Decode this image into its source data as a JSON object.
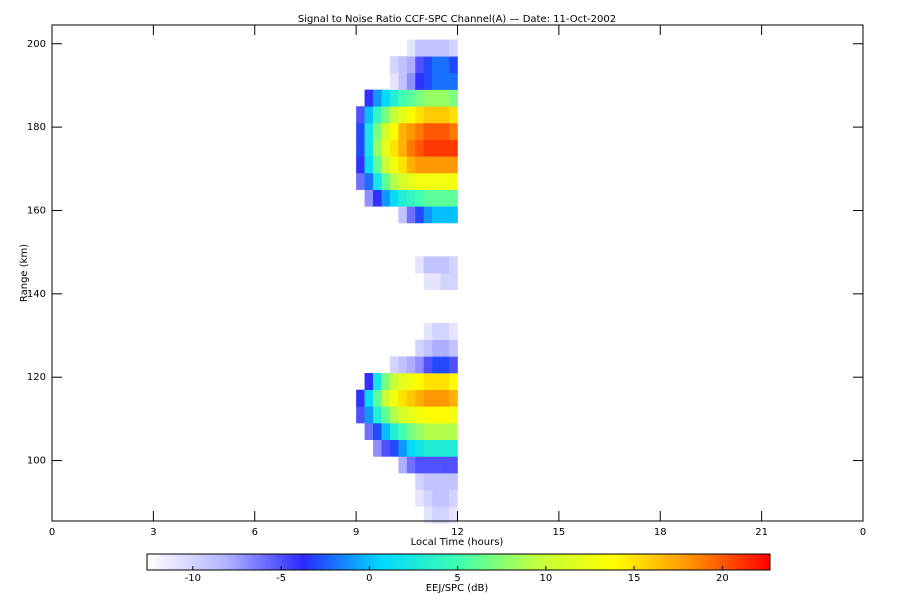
{
  "chart_data": {
    "type": "heatmap",
    "title": "Signal to Noise Ratio CCF-SPC Channel(A) — Date: 11-Oct-2002",
    "xlabel": "Local Time (hours)",
    "ylabel": "Range (km)",
    "colorbar_label": "EEJ/SPC (dB)",
    "xlim": [
      0,
      24
    ],
    "xticks": [
      0,
      3,
      6,
      9,
      12,
      15,
      18,
      21,
      {
        "value": 24,
        "label": "0"
      }
    ],
    "ylim": [
      85.5,
      204.5
    ],
    "yticks": [
      100,
      120,
      140,
      160,
      180,
      200
    ],
    "x": [
      9,
      9.25,
      9.5,
      9.75,
      10,
      10.25,
      10.5,
      10.75,
      11,
      11.25,
      11.5,
      11.75,
      12
    ],
    "y": [
      85,
      89,
      93,
      97,
      101,
      105,
      109,
      113,
      117,
      121,
      125,
      129,
      133,
      137,
      141,
      145,
      149,
      153,
      157,
      161,
      165,
      169,
      173,
      177,
      181,
      185,
      189,
      193,
      197,
      201
    ],
    "z": [
      [
        null,
        null,
        null,
        null,
        null,
        null,
        null,
        null,
        -11,
        -10,
        -10,
        -11
      ],
      [
        null,
        null,
        null,
        null,
        null,
        null,
        null,
        -11,
        -10,
        -9,
        -9,
        -10
      ],
      [
        null,
        null,
        null,
        null,
        null,
        null,
        null,
        -10,
        -9,
        -9,
        -9,
        -9
      ],
      [
        null,
        null,
        null,
        null,
        null,
        -8,
        -6,
        -5,
        -5,
        -5,
        -5,
        -5
      ],
      [
        null,
        null,
        -7,
        -5,
        -3,
        -1,
        1,
        2,
        3,
        3,
        3,
        3
      ],
      [
        null,
        -6,
        -3,
        0,
        3,
        5,
        7,
        8,
        9,
        9,
        9,
        9
      ],
      [
        -5,
        -1,
        3,
        6,
        9,
        11,
        12,
        13,
        14,
        14,
        14,
        13
      ],
      [
        -4,
        1,
        6,
        10,
        13,
        15,
        16,
        17,
        18,
        18,
        18,
        17
      ],
      [
        null,
        -4,
        2,
        7,
        10,
        12,
        13,
        14,
        15,
        15,
        15,
        14
      ],
      [
        null,
        null,
        null,
        null,
        -10,
        -9,
        -8,
        -7,
        -5,
        -3,
        -3,
        -5
      ],
      [
        null,
        null,
        null,
        null,
        null,
        null,
        null,
        -10,
        -9,
        -8,
        -8,
        -9
      ],
      [
        null,
        null,
        null,
        null,
        null,
        null,
        null,
        null,
        -11,
        -10,
        -10,
        -11
      ],
      [
        null,
        null,
        null,
        null,
        null,
        null,
        null,
        null,
        null,
        null,
        null,
        null
      ],
      [
        null,
        null,
        null,
        null,
        null,
        null,
        null,
        null,
        null,
        null,
        null,
        null
      ],
      [
        null,
        null,
        null,
        null,
        null,
        null,
        null,
        null,
        -11,
        -11,
        -10,
        -10
      ],
      [
        null,
        null,
        null,
        null,
        null,
        null,
        null,
        -11,
        -9,
        -9,
        -9,
        -10
      ],
      [
        null,
        null,
        null,
        null,
        null,
        null,
        null,
        null,
        null,
        null,
        null,
        null
      ],
      [
        null,
        null,
        null,
        null,
        null,
        null,
        null,
        null,
        null,
        null,
        null,
        null
      ],
      [
        null,
        null,
        null,
        null,
        null,
        -9,
        -6,
        -3,
        -1,
        0,
        0,
        0
      ],
      [
        null,
        -7,
        -4,
        -1,
        1,
        3,
        4,
        5,
        6,
        6,
        6,
        6
      ],
      [
        -6,
        -2,
        2,
        6,
        9,
        11,
        12,
        13,
        13,
        13,
        13,
        13
      ],
      [
        -4,
        1,
        6,
        10,
        13,
        15,
        17,
        18,
        18,
        18,
        18,
        18
      ],
      [
        -3,
        2,
        8,
        12,
        15,
        17,
        19,
        20,
        21,
        21,
        21,
        21
      ],
      [
        -3,
        2,
        7,
        11,
        14,
        17,
        18,
        19,
        20,
        20,
        20,
        19
      ],
      [
        -5,
        0,
        4,
        7,
        10,
        12,
        14,
        15,
        16,
        16,
        16,
        15
      ],
      [
        null,
        -4,
        -1,
        1,
        3,
        5,
        6,
        7,
        8,
        8,
        8,
        7
      ],
      [
        null,
        null,
        null,
        null,
        -11,
        -9,
        -7,
        -4,
        -3,
        -2,
        -2,
        -2
      ],
      [
        null,
        null,
        null,
        null,
        -10,
        -9,
        -8,
        -5,
        -3,
        -2,
        -2,
        -3
      ],
      [
        null,
        null,
        null,
        null,
        null,
        null,
        -11,
        -9,
        -9,
        -9,
        -9,
        -10
      ]
    ],
    "zlim": [
      -12.6,
      22.7
    ],
    "zticks": [
      -10,
      -5,
      0,
      5,
      10,
      15,
      20
    ],
    "colorscale": [
      "#ffffff",
      "#b4b4ff",
      "#2a2aff",
      "#00d8ff",
      "#40ffb0",
      "#c0ff40",
      "#ffff00",
      "#ff9000",
      "#ff0000"
    ]
  }
}
